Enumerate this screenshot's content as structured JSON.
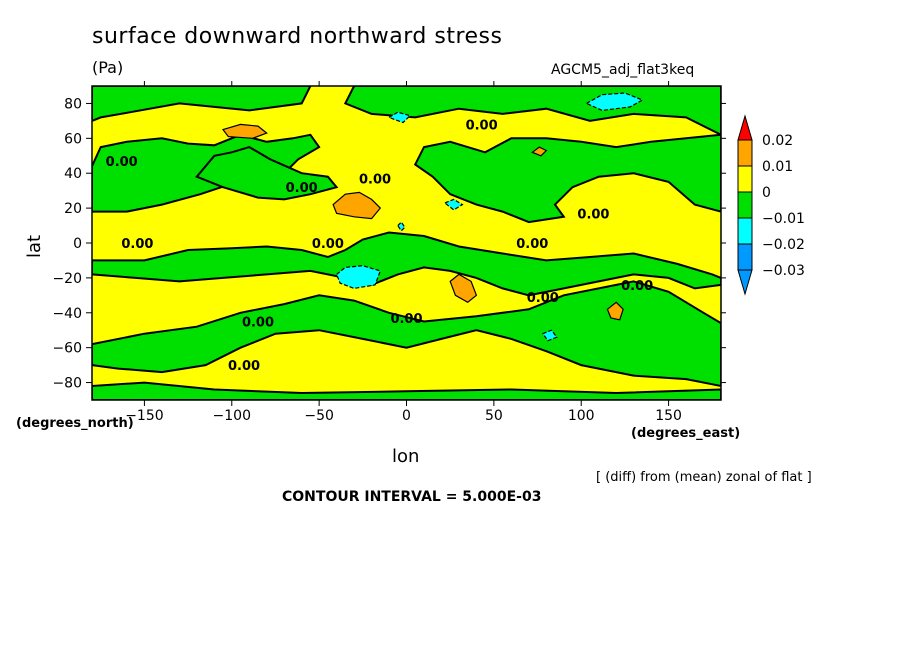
{
  "title": "surface downward northward stress",
  "units": "(Pa)",
  "experiment": "AGCM5_adj_flat3keq",
  "x_axis_title": "lon",
  "y_axis_title": "lat",
  "x_unit": "(degrees_east)",
  "y_unit": "(degrees_north)",
  "difference_note": "[ (diff) from (mean) zonal of flat ]",
  "contour_interval_text": "CONTOUR INTERVAL = 5.000E-03",
  "colors": {
    "orange": "#ffa500",
    "yellow": "#ffff00",
    "green": "#00e000",
    "cyan": "#00ffff",
    "blue": "#0099ff",
    "red": "#ff0000"
  },
  "chart_data": {
    "type": "heatmap",
    "subtype": "filled contour map",
    "xlim": [
      -180,
      180
    ],
    "ylim": [
      -90,
      90
    ],
    "x_ticks": [
      -150,
      -100,
      -50,
      0,
      50,
      100,
      150
    ],
    "y_ticks": [
      80,
      60,
      40,
      20,
      0,
      -20,
      -40,
      -60,
      -80
    ],
    "x_tick_labels": [
      "−150",
      "−100",
      "−50",
      "0",
      "50",
      "100",
      "150"
    ],
    "y_tick_labels": [
      "80",
      "60",
      "40",
      "20",
      "0",
      "−20",
      "−40",
      "−60",
      "−80"
    ],
    "contour_interval": 0.005,
    "colorbar": {
      "levels": [
        0.02,
        0.01,
        0,
        -0.01,
        -0.02,
        -0.03
      ],
      "labels": [
        "0.02",
        "0.01",
        "0",
        "−0.01",
        "−0.02",
        "−0.03"
      ],
      "segment_colors": [
        "#ff0000",
        "#ffa500",
        "#ffff00",
        "#00e000",
        "#00ffff",
        "#0099ff",
        "#0099ff"
      ]
    },
    "contour_labels": [
      {
        "text": "0.00",
        "lon": 43,
        "lat": 68
      },
      {
        "text": "0.00",
        "lon": -163,
        "lat": 47
      },
      {
        "text": "0.00",
        "lon": -60,
        "lat": 32
      },
      {
        "text": "0.00",
        "lon": -18,
        "lat": 37
      },
      {
        "text": "0.00",
        "lon": 107,
        "lat": 17
      },
      {
        "text": "0.00",
        "lon": -154,
        "lat": 0
      },
      {
        "text": "0.00",
        "lon": -45,
        "lat": 0
      },
      {
        "text": "0.00",
        "lon": 72,
        "lat": 0
      },
      {
        "text": "0.00",
        "lon": 132,
        "lat": -24
      },
      {
        "text": "0.00",
        "lon": 78,
        "lat": -31
      },
      {
        "text": "0.00",
        "lon": -85,
        "lat": -45
      },
      {
        "text": "0.00",
        "lon": 0,
        "lat": -43
      },
      {
        "text": "0.00",
        "lon": -93,
        "lat": -70
      }
    ],
    "regions": [
      {
        "level": "positive",
        "points": [
          [
            -180,
            -90
          ],
          [
            180,
            -90
          ],
          [
            180,
            90
          ],
          [
            -180,
            90
          ]
        ]
      },
      {
        "level": "negative",
        "points": [
          [
            -180,
            90
          ],
          [
            -55,
            90
          ],
          [
            -60,
            80
          ],
          [
            -90,
            76
          ],
          [
            -110,
            78
          ],
          [
            -130,
            80
          ],
          [
            -158,
            75
          ],
          [
            -175,
            72
          ],
          [
            -180,
            70
          ]
        ]
      },
      {
        "level": "negative",
        "points": [
          [
            -30,
            90
          ],
          [
            180,
            90
          ],
          [
            180,
            62
          ],
          [
            160,
            72
          ],
          [
            130,
            74
          ],
          [
            105,
            70
          ],
          [
            80,
            77
          ],
          [
            55,
            74
          ],
          [
            30,
            77
          ],
          [
            5,
            72
          ],
          [
            -20,
            74
          ],
          [
            -35,
            80
          ]
        ]
      },
      {
        "level": "negative",
        "points": [
          [
            -180,
            44
          ],
          [
            -175,
            55
          ],
          [
            -160,
            58
          ],
          [
            -140,
            60
          ],
          [
            -125,
            57
          ],
          [
            -110,
            56
          ],
          [
            -95,
            62
          ],
          [
            -80,
            58
          ],
          [
            -65,
            60
          ],
          [
            -55,
            62
          ],
          [
            -50,
            55
          ],
          [
            -62,
            48
          ],
          [
            -70,
            40
          ],
          [
            -85,
            38
          ],
          [
            -100,
            34
          ],
          [
            -118,
            28
          ],
          [
            -140,
            22
          ],
          [
            -160,
            18
          ],
          [
            -180,
            18
          ]
        ]
      },
      {
        "level": "negative",
        "points": [
          [
            -110,
            50
          ],
          [
            -100,
            52
          ],
          [
            -90,
            55
          ],
          [
            -78,
            48
          ],
          [
            -60,
            40
          ],
          [
            -45,
            38
          ],
          [
            -40,
            32
          ],
          [
            -55,
            28
          ],
          [
            -70,
            25
          ],
          [
            -85,
            26
          ],
          [
            -105,
            32
          ],
          [
            -120,
            38
          ]
        ]
      },
      {
        "level": "negative",
        "points": [
          [
            10,
            55
          ],
          [
            25,
            58
          ],
          [
            45,
            52
          ],
          [
            60,
            60
          ],
          [
            80,
            60
          ],
          [
            100,
            58
          ],
          [
            120,
            55
          ],
          [
            140,
            58
          ],
          [
            160,
            60
          ],
          [
            180,
            62
          ],
          [
            180,
            18
          ],
          [
            165,
            22
          ],
          [
            150,
            35
          ],
          [
            130,
            40
          ],
          [
            110,
            38
          ],
          [
            95,
            32
          ],
          [
            85,
            22
          ],
          [
            90,
            15
          ],
          [
            70,
            12
          ],
          [
            55,
            18
          ],
          [
            40,
            22
          ],
          [
            25,
            28
          ],
          [
            15,
            38
          ],
          [
            5,
            45
          ]
        ]
      },
      {
        "level": "negative",
        "points": [
          [
            -150,
            -10
          ],
          [
            -125,
            -4
          ],
          [
            -100,
            -3
          ],
          [
            -80,
            -2
          ],
          [
            -60,
            -4
          ],
          [
            -45,
            -8
          ],
          [
            -35,
            -4
          ],
          [
            -25,
            2
          ],
          [
            -10,
            6
          ],
          [
            10,
            4
          ],
          [
            30,
            -2
          ],
          [
            55,
            -6
          ],
          [
            80,
            -10
          ],
          [
            105,
            -8
          ],
          [
            130,
            -6
          ],
          [
            155,
            -12
          ],
          [
            175,
            -18
          ],
          [
            180,
            -20
          ],
          [
            180,
            -24
          ],
          [
            165,
            -26
          ],
          [
            150,
            -20
          ],
          [
            130,
            -18
          ],
          [
            110,
            -22
          ],
          [
            90,
            -26
          ],
          [
            70,
            -30
          ],
          [
            55,
            -26
          ],
          [
            40,
            -20
          ],
          [
            25,
            -16
          ],
          [
            10,
            -14
          ],
          [
            -5,
            -18
          ],
          [
            -20,
            -24
          ],
          [
            -35,
            -20
          ],
          [
            -55,
            -16
          ],
          [
            -80,
            -18
          ],
          [
            -105,
            -20
          ],
          [
            -130,
            -22
          ],
          [
            -155,
            -20
          ],
          [
            -180,
            -18
          ],
          [
            -180,
            -10
          ]
        ]
      },
      {
        "level": "negative",
        "points": [
          [
            -180,
            -58
          ],
          [
            -150,
            -52
          ],
          [
            -120,
            -48
          ],
          [
            -95,
            -40
          ],
          [
            -70,
            -35
          ],
          [
            -50,
            -30
          ],
          [
            -30,
            -33
          ],
          [
            -10,
            -40
          ],
          [
            10,
            -45
          ],
          [
            40,
            -42
          ],
          [
            70,
            -38
          ],
          [
            90,
            -30
          ],
          [
            110,
            -26
          ],
          [
            130,
            -22
          ],
          [
            150,
            -28
          ],
          [
            170,
            -40
          ],
          [
            180,
            -46
          ],
          [
            180,
            -82
          ],
          [
            160,
            -78
          ],
          [
            130,
            -76
          ],
          [
            100,
            -70
          ],
          [
            80,
            -62
          ],
          [
            60,
            -55
          ],
          [
            40,
            -50
          ],
          [
            20,
            -55
          ],
          [
            0,
            -60
          ],
          [
            -25,
            -55
          ],
          [
            -50,
            -50
          ],
          [
            -75,
            -52
          ],
          [
            -95,
            -60
          ],
          [
            -115,
            -70
          ],
          [
            -140,
            -74
          ],
          [
            -165,
            -72
          ],
          [
            -180,
            -70
          ]
        ]
      },
      {
        "level": "negative",
        "points": [
          [
            -180,
            -82
          ],
          [
            -150,
            -80
          ],
          [
            -110,
            -84
          ],
          [
            -60,
            -86
          ],
          [
            0,
            -85
          ],
          [
            60,
            -84
          ],
          [
            120,
            -86
          ],
          [
            180,
            -84
          ],
          [
            180,
            -90
          ],
          [
            -180,
            -90
          ]
        ]
      },
      {
        "level": "plus1",
        "points": [
          [
            -105,
            65
          ],
          [
            -95,
            68
          ],
          [
            -85,
            67
          ],
          [
            -80,
            63
          ],
          [
            -88,
            60
          ],
          [
            -102,
            61
          ]
        ]
      },
      {
        "level": "plus1",
        "points": [
          [
            -42,
            22
          ],
          [
            -35,
            28
          ],
          [
            -27,
            29
          ],
          [
            -20,
            25
          ],
          [
            -15,
            20
          ],
          [
            -20,
            14
          ],
          [
            -30,
            15
          ],
          [
            -40,
            17
          ]
        ]
      },
      {
        "level": "plus1",
        "points": [
          [
            25,
            -22
          ],
          [
            30,
            -18
          ],
          [
            37,
            -22
          ],
          [
            40,
            -30
          ],
          [
            35,
            -34
          ],
          [
            28,
            -30
          ]
        ]
      },
      {
        "level": "plus1",
        "points": [
          [
            115,
            -38
          ],
          [
            120,
            -34
          ],
          [
            124,
            -38
          ],
          [
            122,
            -44
          ],
          [
            117,
            -43
          ]
        ]
      },
      {
        "level": "plus1",
        "points": [
          [
            72,
            52
          ],
          [
            76,
            55
          ],
          [
            80,
            53
          ],
          [
            77,
            50
          ]
        ]
      },
      {
        "level": "minus2",
        "points": [
          [
            103,
            80
          ],
          [
            112,
            85
          ],
          [
            125,
            86
          ],
          [
            135,
            82
          ],
          [
            128,
            78
          ],
          [
            112,
            76
          ]
        ]
      },
      {
        "level": "minus2",
        "points": [
          [
            -10,
            72
          ],
          [
            -5,
            75
          ],
          [
            2,
            73
          ],
          [
            -2,
            69
          ]
        ]
      },
      {
        "level": "minus2",
        "points": [
          [
            -40,
            -18
          ],
          [
            -35,
            -14
          ],
          [
            -25,
            -13
          ],
          [
            -15,
            -16
          ],
          [
            -18,
            -24
          ],
          [
            -30,
            -26
          ],
          [
            -38,
            -23
          ]
        ]
      },
      {
        "level": "minus2",
        "points": [
          [
            22,
            23
          ],
          [
            27,
            25
          ],
          [
            32,
            22
          ],
          [
            27,
            19
          ]
        ]
      },
      {
        "level": "minus2",
        "points": [
          [
            -5,
            10
          ],
          [
            -3,
            12
          ],
          [
            -1,
            9
          ],
          [
            -3,
            7
          ]
        ]
      },
      {
        "level": "minus2",
        "points": [
          [
            78,
            -52
          ],
          [
            83,
            -50
          ],
          [
            86,
            -54
          ],
          [
            81,
            -56
          ]
        ]
      }
    ]
  }
}
